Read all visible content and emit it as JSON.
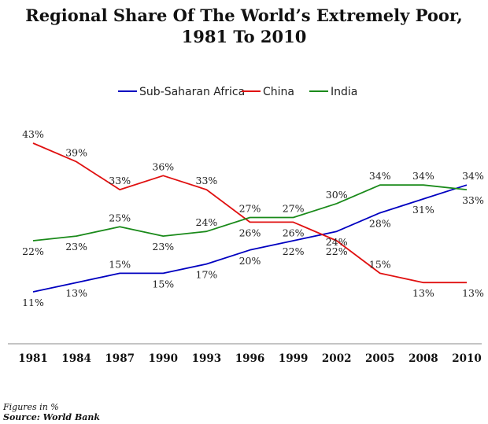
{
  "chart_data": {
    "type": "line",
    "title_lines": [
      "Regional Share Of The World’s Extremely Poor,",
      "1981 To 2010"
    ],
    "x": [
      "1981",
      "1984",
      "1987",
      "1990",
      "1993",
      "1996",
      "1999",
      "2002",
      "2005",
      "2008",
      "2010"
    ],
    "series": [
      {
        "name": "Sub-Saharan Africa",
        "color": "#0000c0",
        "values": [
          11,
          13,
          15,
          15,
          17,
          20,
          22,
          24,
          28,
          31,
          34
        ],
        "labels": [
          "11%",
          "13%",
          "15%",
          "15%",
          "17%",
          "20%",
          "22%",
          "24%",
          "28%",
          "31%",
          "34%"
        ],
        "label_side": [
          "below",
          "below",
          "above",
          "below",
          "below",
          "below",
          "below",
          "below",
          "below",
          "below",
          "above"
        ]
      },
      {
        "name": "China",
        "color": "#e01010",
        "values": [
          43,
          39,
          33,
          36,
          33,
          26,
          26,
          22,
          15,
          13,
          13
        ],
        "labels": [
          "43%",
          "39%",
          "33%",
          "36%",
          "33%",
          "26%",
          "26%",
          "22%",
          "15%",
          "13%",
          "13%"
        ],
        "label_side": [
          "above",
          "above",
          "above",
          "above",
          "above",
          "below",
          "below",
          "below",
          "above",
          "below",
          "below"
        ]
      },
      {
        "name": "India",
        "color": "#1a8a1a",
        "values": [
          22,
          23,
          25,
          23,
          24,
          27,
          27,
          30,
          34,
          34,
          33
        ],
        "labels": [
          "22%",
          "23%",
          "25%",
          "23%",
          "24%",
          "27%",
          "27%",
          "30%",
          "34%",
          "34%",
          "33%"
        ],
        "label_side": [
          "below",
          "below",
          "above",
          "below",
          "above",
          "above",
          "above",
          "above",
          "above",
          "above",
          "below"
        ]
      }
    ],
    "ylim": [
      0,
      50
    ],
    "grid": false,
    "legend_placement": "top-center"
  },
  "footer": {
    "note": "Figures in %",
    "source": "Source: World Bank"
  }
}
